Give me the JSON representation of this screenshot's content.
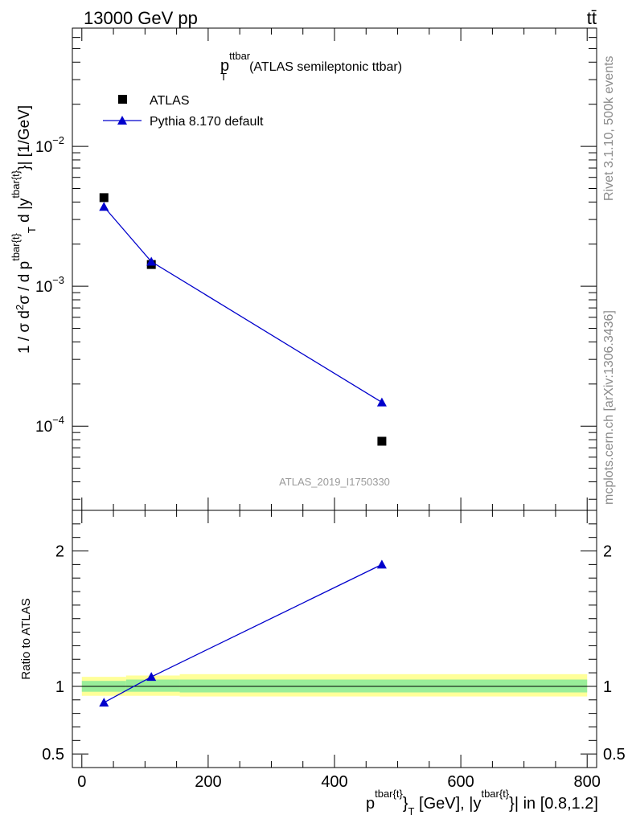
{
  "header": {
    "left": "13000 GeV pp",
    "right": "tt̄"
  },
  "side_text": {
    "rivet": "Rivet 3.1.10,  500k events",
    "mcplots": "mcplots.cern.ch [arXiv:1306.3436]"
  },
  "watermark": "ATLAS_2019_I1750330",
  "chart_data": [
    {
      "type": "scatter",
      "title_main": "p",
      "title_sup": "ttbar",
      "title_sub": "T",
      "title_rest": "(ATLAS semileptonic ttbar)",
      "ylabel": "1 / σ d²σ / d p^{tbar{t}}_T d |y^{tbar{t}}| [1/GeV]",
      "yscale": "log",
      "ylim": [
        2.5e-05,
        0.07
      ],
      "y_ticks": [
        {
          "value": 0.0001,
          "base": "10",
          "exp": "−4"
        },
        {
          "value": 0.001,
          "base": "10",
          "exp": "−3"
        },
        {
          "value": 0.01,
          "base": "10",
          "exp": "−2"
        }
      ],
      "xlim": [
        -15,
        815
      ],
      "legend": {
        "placement": "top-left",
        "entries": [
          {
            "label": "ATLAS",
            "marker": "square",
            "color": "#000000"
          },
          {
            "label": "Pythia 8.170 default",
            "marker": "triangle",
            "color": "#0000cc"
          }
        ]
      },
      "series": [
        {
          "name": "ATLAS",
          "color": "#000000",
          "marker": "square",
          "x": [
            35,
            110,
            475
          ],
          "y": [
            0.0043,
            0.00143,
            7.8e-05
          ]
        },
        {
          "name": "Pythia 8.170 default",
          "color": "#0000cc",
          "marker": "triangle",
          "line": true,
          "x": [
            35,
            110,
            475
          ],
          "y": [
            0.0037,
            0.0015,
            0.000148
          ]
        }
      ]
    },
    {
      "type": "line",
      "ylabel": "Ratio to ATLAS",
      "ylim": [
        0.4,
        2.3
      ],
      "y_ticks": [
        {
          "value": 0.5,
          "label": "0.5"
        },
        {
          "value": 1,
          "label": "1"
        },
        {
          "value": 2,
          "label": "2"
        }
      ],
      "xlim": [
        -15,
        815
      ],
      "x_ticks": [
        {
          "value": 0,
          "label": "0"
        },
        {
          "value": 200,
          "label": "200"
        },
        {
          "value": 400,
          "label": "400"
        },
        {
          "value": 600,
          "label": "600"
        },
        {
          "value": 800,
          "label": "800"
        }
      ],
      "xlabel": "p^{tbar{t}}_T [GeV], |y^{tbar{t}}| in [0.8,1.2]",
      "bands": [
        {
          "x": [
            0,
            70
          ],
          "inner": [
            0.96,
            1.04
          ],
          "outer": [
            0.93,
            1.07
          ]
        },
        {
          "x": [
            70,
            155
          ],
          "inner": [
            0.96,
            1.05
          ],
          "outer": [
            0.93,
            1.08
          ]
        },
        {
          "x": [
            155,
            800
          ],
          "inner": [
            0.955,
            1.05
          ],
          "outer": [
            0.925,
            1.09
          ]
        }
      ],
      "band_colors": {
        "inner": "#99ee99",
        "outer": "#ffff99"
      },
      "series": [
        {
          "name": "Pythia 8.170 default",
          "color": "#0000cc",
          "marker": "triangle",
          "x": [
            35,
            110,
            475
          ],
          "y": [
            0.88,
            1.07,
            1.9
          ]
        }
      ]
    }
  ]
}
